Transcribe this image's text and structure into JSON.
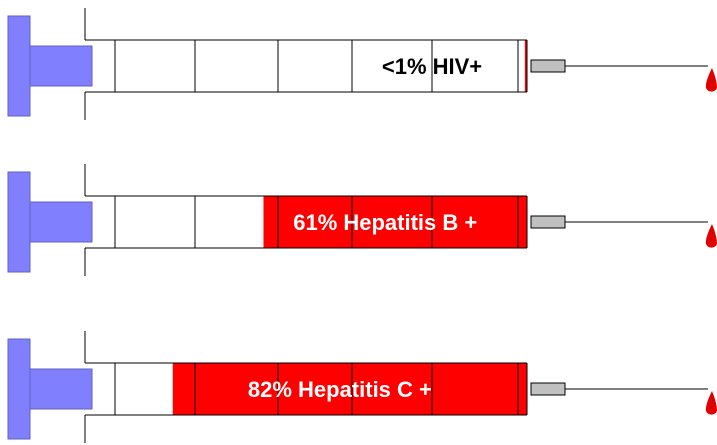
{
  "chart_data": {
    "type": "bar",
    "values": [
      0.5,
      61,
      82
    ],
    "value_labels": [
      "<1% HIV+",
      "61% Hepatitis B +",
      "82% Hepatitis C +"
    ],
    "color": "#ff0000"
  }
}
